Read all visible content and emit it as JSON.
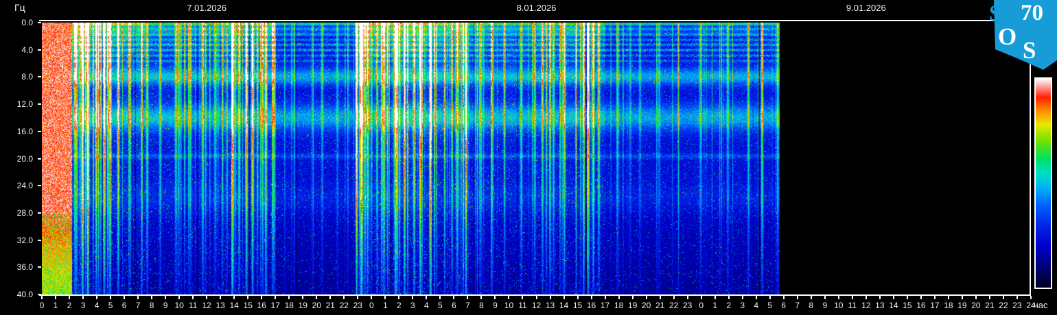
{
  "page": {
    "app": "SOS70 magnetic field spectrogram"
  },
  "logo": {
    "s1": "S",
    "digits": "70",
    "o": "O",
    "s2": "S",
    "bg_color": "#189cd7",
    "letter_color": "#ffffff"
  },
  "colorbar": {
    "outline_color": "#ffffff"
  },
  "chart_data": {
    "type": "heatmap",
    "x_axis": {
      "unit": "час",
      "range_hours": [
        0,
        72
      ],
      "day_labels": [
        "7.01.2026",
        "8.01.2026",
        "9.01.2026"
      ],
      "tick_labels": [
        "0",
        "1",
        "2",
        "3",
        "4",
        "5",
        "6",
        "7",
        "8",
        "9",
        "10",
        "11",
        "12",
        "13",
        "14",
        "15",
        "16",
        "17",
        "18",
        "19",
        "20",
        "21",
        "22",
        "23",
        "0",
        "1",
        "2",
        "3",
        "4",
        "5",
        "6",
        "7",
        "8",
        "9",
        "10",
        "11",
        "12",
        "13",
        "14",
        "15",
        "16",
        "17",
        "18",
        "19",
        "20",
        "21",
        "22",
        "23",
        "0",
        "1",
        "2",
        "3",
        "4",
        "5",
        "6",
        "7",
        "8",
        "9",
        "10",
        "11",
        "12",
        "13",
        "14",
        "15",
        "16",
        "17",
        "18",
        "19",
        "20",
        "21",
        "22",
        "23",
        "24"
      ]
    },
    "y_axis": {
      "unit": "Гц",
      "range_hz": [
        0,
        40
      ],
      "tick_labels": [
        "0.0",
        "4.0",
        "8.0",
        "12.0",
        "16.0",
        "20.0",
        "24.0",
        "28.0",
        "32.0",
        "36.0",
        "40.0"
      ]
    },
    "data_end_hour": 53.7,
    "colormap_stops": [
      [
        0.0,
        "#000022"
      ],
      [
        0.1,
        "#000077"
      ],
      [
        0.2,
        "#0000cc"
      ],
      [
        0.3,
        "#0028e8"
      ],
      [
        0.4,
        "#0066ff"
      ],
      [
        0.48,
        "#00b4f0"
      ],
      [
        0.55,
        "#00e0c0"
      ],
      [
        0.62,
        "#00e060"
      ],
      [
        0.7,
        "#70e000"
      ],
      [
        0.78,
        "#e8e800"
      ],
      [
        0.85,
        "#ff8800"
      ],
      [
        0.91,
        "#ff2000"
      ],
      [
        0.96,
        "#ff9898"
      ],
      [
        1.0,
        "#ffffff"
      ]
    ],
    "background_base_levels": [
      {
        "below_hz": 0.35,
        "level": 0.52
      },
      {
        "below_hz": 2.0,
        "level": 0.34
      },
      {
        "below_hz": 6.5,
        "level": 0.27
      },
      {
        "below_hz": 41.0,
        "level": 0.28
      }
    ],
    "high_freq_rolloff_per_hz": 0.006,
    "resonance_bands": [
      {
        "center_hz": 7.9,
        "sigma_hz": 0.9,
        "amplitude": 0.26
      },
      {
        "center_hz": 13.9,
        "sigma_hz": 1.4,
        "amplitude": 0.25
      },
      {
        "center_hz": 19.6,
        "sigma_hz": 0.25,
        "amplitude": 0.12
      },
      {
        "center_hz": 25.8,
        "sigma_hz": 1.6,
        "amplitude": 0.07
      }
    ],
    "interference_lines_hz_amp": [
      [
        0.9,
        0.1
      ],
      [
        1.7,
        0.1
      ],
      [
        2.5,
        0.12
      ],
      [
        3.2,
        0.16
      ],
      [
        4.0,
        0.16
      ],
      [
        4.8,
        0.13
      ],
      [
        5.6,
        0.1
      ]
    ],
    "saturated_interval_hours": [
      0,
      2.15
    ],
    "activity_periods": [
      [
        0,
        2.15,
        0.95
      ],
      [
        2.15,
        3.5,
        0.8
      ],
      [
        3.5,
        7.5,
        0.5
      ],
      [
        7.5,
        13,
        0.28
      ],
      [
        13,
        17,
        0.42
      ],
      [
        17,
        22.8,
        0.12
      ],
      [
        22.8,
        28,
        0.6
      ],
      [
        28,
        31,
        0.45
      ],
      [
        31,
        36,
        0.3
      ],
      [
        36,
        41,
        0.35
      ],
      [
        41,
        47.5,
        0.1
      ],
      [
        47.5,
        53.7,
        0.16
      ]
    ],
    "major_events_hour_amp": [
      [
        2.5,
        0.55
      ],
      [
        2.95,
        0.8
      ],
      [
        3.35,
        0.7
      ],
      [
        3.95,
        0.85
      ],
      [
        4.55,
        0.7
      ],
      [
        4.95,
        0.9
      ],
      [
        5.55,
        0.6
      ],
      [
        6.4,
        0.5
      ],
      [
        7.65,
        0.55
      ],
      [
        8.6,
        0.4
      ],
      [
        9.75,
        0.5
      ],
      [
        10.8,
        0.4
      ],
      [
        11.7,
        0.55
      ],
      [
        12.6,
        0.4
      ],
      [
        13.9,
        0.85
      ],
      [
        14.35,
        0.6
      ],
      [
        14.9,
        0.8
      ],
      [
        15.35,
        0.55
      ],
      [
        16.3,
        0.75
      ],
      [
        16.9,
        0.5
      ],
      [
        18.4,
        0.3
      ],
      [
        20.4,
        0.3
      ],
      [
        21.5,
        0.25
      ],
      [
        22.9,
        0.7
      ],
      [
        23.3,
        0.8
      ],
      [
        23.7,
        0.6
      ],
      [
        24.9,
        0.75
      ],
      [
        25.7,
        0.6
      ],
      [
        26.4,
        0.85
      ],
      [
        27.1,
        0.7
      ],
      [
        27.55,
        0.6
      ],
      [
        28.3,
        0.5
      ],
      [
        29.3,
        0.55
      ],
      [
        30.2,
        0.45
      ],
      [
        30.9,
        0.5
      ],
      [
        31.9,
        0.45
      ],
      [
        32.8,
        0.4
      ],
      [
        33.7,
        0.5
      ],
      [
        34.9,
        0.45
      ],
      [
        36.4,
        0.5
      ],
      [
        37.2,
        0.4
      ],
      [
        37.9,
        0.45
      ],
      [
        39.4,
        0.6
      ],
      [
        39.75,
        0.75
      ],
      [
        40.1,
        0.7
      ],
      [
        40.5,
        0.55
      ],
      [
        41.9,
        0.3
      ],
      [
        43.5,
        0.25
      ],
      [
        44.9,
        0.25
      ],
      [
        46.3,
        0.2
      ],
      [
        47.9,
        0.3
      ],
      [
        49.9,
        0.35
      ],
      [
        51.4,
        0.4
      ],
      [
        52.4,
        0.3
      ],
      [
        53.55,
        0.35
      ]
    ],
    "noise_seed": 73
  }
}
